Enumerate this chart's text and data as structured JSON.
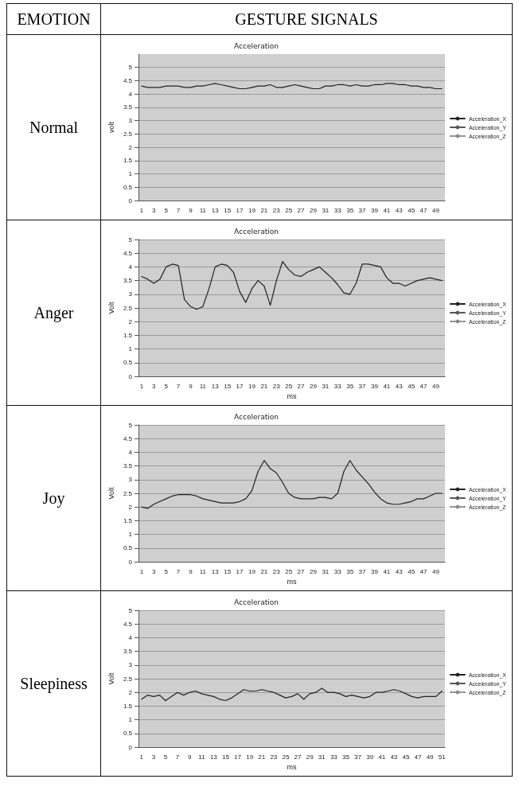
{
  "chart_data": [
    {
      "type": "line",
      "title": "Acceleration",
      "ylabel": "volt",
      "annotations": [
        "EMOTION",
        "GESTURE SIGNALS",
        "Normal"
      ],
      "x": [
        1,
        2,
        3,
        4,
        5,
        6,
        7,
        8,
        9,
        10,
        11,
        12,
        13,
        14,
        15,
        16,
        17,
        18,
        19,
        20,
        21,
        22,
        23,
        24,
        25,
        26,
        27,
        28,
        29,
        30,
        31,
        32,
        33,
        34,
        35,
        36,
        37,
        38,
        39,
        40,
        41,
        42,
        43,
        44,
        45,
        46,
        47,
        48,
        49,
        50
      ],
      "xlim": [
        0.5,
        50.5
      ],
      "xticks": [
        1,
        3,
        5,
        7,
        9,
        11,
        13,
        15,
        17,
        19,
        21,
        23,
        25,
        27,
        29,
        31,
        33,
        35,
        37,
        39,
        41,
        43,
        45,
        47,
        49
      ],
      "ylim": [
        0,
        5.5
      ],
      "yticks": [
        0,
        0.5,
        1,
        1.5,
        2,
        2.5,
        3,
        3.5,
        4,
        4.5,
        5
      ],
      "grid": "y",
      "legend": "right",
      "marker": "none",
      "series": [
        {
          "name": "Acceleration_X",
          "color": "#222222",
          "line_style": "solid",
          "values": [
            4.3,
            4.25,
            4.25,
            4.25,
            4.3,
            4.3,
            4.3,
            4.25,
            4.25,
            4.3,
            4.3,
            4.35,
            4.4,
            4.35,
            4.3,
            4.25,
            4.2,
            4.2,
            4.25,
            4.3,
            4.3,
            4.35,
            4.25,
            4.25,
            4.3,
            4.35,
            4.3,
            4.25,
            4.2,
            4.2,
            4.3,
            4.3,
            4.35,
            4.35,
            4.3,
            4.35,
            4.3,
            4.3,
            4.35,
            4.35,
            4.4,
            4.4,
            4.35,
            4.35,
            4.3,
            4.3,
            4.25,
            4.25,
            4.2,
            4.2
          ]
        },
        {
          "name": "Acceleration_Y",
          "color": "#555555",
          "line_style": "dashed",
          "values": [
            null,
            null,
            null,
            null,
            null,
            null,
            null,
            null,
            null,
            null,
            null,
            null,
            null,
            null,
            null,
            null,
            null,
            null,
            null,
            null,
            null,
            null,
            null,
            null,
            null,
            null,
            null,
            null,
            null,
            null,
            null,
            null,
            null,
            null,
            null,
            null,
            null,
            null,
            null,
            null,
            null,
            null,
            null,
            null,
            null,
            null,
            null,
            null,
            null,
            null
          ]
        },
        {
          "name": "Acceleration_Z",
          "color": "#888888",
          "line_style": "dotted",
          "values": [
            null,
            null,
            null,
            null,
            null,
            null,
            null,
            null,
            null,
            null,
            null,
            null,
            null,
            null,
            null,
            null,
            null,
            null,
            null,
            null,
            null,
            null,
            null,
            null,
            null,
            null,
            null,
            null,
            null,
            null,
            null,
            null,
            null,
            null,
            null,
            null,
            null,
            null,
            null,
            null,
            null,
            null,
            null,
            null,
            null,
            null,
            null,
            null,
            null,
            null
          ]
        }
      ]
    },
    {
      "type": "line",
      "title": "Acceleration",
      "xlabel": "ms",
      "ylabel": "Volt",
      "annotations": [
        "Anger"
      ],
      "x": [
        1,
        2,
        3,
        4,
        5,
        6,
        7,
        8,
        9,
        10,
        11,
        12,
        13,
        14,
        15,
        16,
        17,
        18,
        19,
        20,
        21,
        22,
        23,
        24,
        25,
        26,
        27,
        28,
        29,
        30,
        31,
        32,
        33,
        34,
        35,
        36,
        37,
        38,
        39,
        40,
        41,
        42,
        43,
        44,
        45,
        46,
        47,
        48,
        49,
        50
      ],
      "xlim": [
        0.5,
        50.5
      ],
      "xticks": [
        1,
        3,
        5,
        7,
        9,
        11,
        13,
        15,
        17,
        19,
        21,
        23,
        25,
        27,
        29,
        31,
        33,
        35,
        37,
        39,
        41,
        43,
        45,
        47,
        49
      ],
      "ylim": [
        0,
        5
      ],
      "yticks": [
        0,
        0.5,
        1,
        1.5,
        2,
        2.5,
        3,
        3.5,
        4,
        4.5,
        5
      ],
      "grid": "y",
      "legend": "right",
      "marker": "none",
      "series": [
        {
          "name": "Acceleration_X",
          "color": "#222222",
          "line_style": "solid",
          "values": [
            3.65,
            3.55,
            3.4,
            3.55,
            4.0,
            4.1,
            4.05,
            2.8,
            2.55,
            2.45,
            2.55,
            3.2,
            4.0,
            4.1,
            4.05,
            3.8,
            3.1,
            2.7,
            3.2,
            3.5,
            3.3,
            2.6,
            3.5,
            4.2,
            3.9,
            3.7,
            3.65,
            3.8,
            3.9,
            4.0,
            3.8,
            3.6,
            3.35,
            3.05,
            3.0,
            3.4,
            4.1,
            4.1,
            4.05,
            4.0,
            3.6,
            3.4,
            3.4,
            3.3,
            3.4,
            3.5,
            3.55,
            3.6,
            3.55,
            3.5
          ]
        },
        {
          "name": "Acceleration_Y",
          "color": "#555555",
          "line_style": "dashed",
          "values": [
            null,
            null,
            null,
            null,
            null,
            null,
            null,
            null,
            null,
            null,
            null,
            null,
            null,
            null,
            null,
            null,
            null,
            null,
            null,
            null,
            null,
            null,
            null,
            null,
            null,
            null,
            null,
            null,
            null,
            null,
            null,
            null,
            null,
            null,
            null,
            null,
            null,
            null,
            null,
            null,
            null,
            null,
            null,
            null,
            null,
            null,
            null,
            null,
            null,
            null
          ]
        },
        {
          "name": "Acceleration_Z",
          "color": "#888888",
          "line_style": "dotted",
          "values": [
            null,
            null,
            null,
            null,
            null,
            null,
            null,
            null,
            null,
            null,
            null,
            null,
            null,
            null,
            null,
            null,
            null,
            null,
            null,
            null,
            null,
            null,
            null,
            null,
            null,
            null,
            null,
            null,
            null,
            null,
            null,
            null,
            null,
            null,
            null,
            null,
            null,
            null,
            null,
            null,
            null,
            null,
            null,
            null,
            null,
            null,
            null,
            null,
            null,
            null
          ]
        }
      ]
    },
    {
      "type": "line",
      "title": "Acceleration",
      "xlabel": "ms",
      "ylabel": "Volt",
      "annotations": [
        "Joy"
      ],
      "x": [
        1,
        2,
        3,
        4,
        5,
        6,
        7,
        8,
        9,
        10,
        11,
        12,
        13,
        14,
        15,
        16,
        17,
        18,
        19,
        20,
        21,
        22,
        23,
        24,
        25,
        26,
        27,
        28,
        29,
        30,
        31,
        32,
        33,
        34,
        35,
        36,
        37,
        38,
        39,
        40,
        41,
        42,
        43,
        44,
        45,
        46,
        47,
        48,
        49,
        50
      ],
      "xlim": [
        0.5,
        50.5
      ],
      "xticks": [
        1,
        3,
        5,
        7,
        9,
        11,
        13,
        15,
        17,
        19,
        21,
        23,
        25,
        27,
        29,
        31,
        33,
        35,
        37,
        39,
        41,
        43,
        45,
        47,
        49
      ],
      "ylim": [
        0,
        5
      ],
      "yticks": [
        0,
        0.5,
        1,
        1.5,
        2,
        2.5,
        3,
        3.5,
        4,
        4.5,
        5
      ],
      "grid": "y",
      "legend": "right",
      "marker": "none",
      "series": [
        {
          "name": "Acceleration_X",
          "color": "#222222",
          "line_style": "solid",
          "values": [
            2.0,
            1.95,
            2.1,
            2.2,
            2.3,
            2.4,
            2.45,
            2.45,
            2.45,
            2.4,
            2.3,
            2.25,
            2.2,
            2.15,
            2.15,
            2.15,
            2.2,
            2.3,
            2.6,
            3.3,
            3.7,
            3.4,
            3.25,
            2.9,
            2.5,
            2.35,
            2.3,
            2.3,
            2.3,
            2.35,
            2.35,
            2.3,
            2.5,
            3.3,
            3.7,
            3.35,
            3.1,
            2.85,
            2.55,
            2.3,
            2.15,
            2.1,
            2.1,
            2.15,
            2.2,
            2.3,
            2.3,
            2.4,
            2.5,
            2.5
          ]
        },
        {
          "name": "Acceleration_Y",
          "color": "#555555",
          "line_style": "dashed",
          "values": [
            null,
            null,
            null,
            null,
            null,
            null,
            null,
            null,
            null,
            null,
            null,
            null,
            null,
            null,
            null,
            null,
            null,
            null,
            null,
            null,
            null,
            null,
            null,
            null,
            null,
            null,
            null,
            null,
            null,
            null,
            null,
            null,
            null,
            null,
            null,
            null,
            null,
            null,
            null,
            null,
            null,
            null,
            null,
            null,
            null,
            null,
            null,
            null,
            null,
            null
          ]
        },
        {
          "name": "Acceleration_Z",
          "color": "#888888",
          "line_style": "dotted",
          "values": [
            null,
            null,
            null,
            null,
            null,
            null,
            null,
            null,
            null,
            null,
            null,
            null,
            null,
            null,
            null,
            null,
            null,
            null,
            null,
            null,
            null,
            null,
            null,
            null,
            null,
            null,
            null,
            null,
            null,
            null,
            null,
            null,
            null,
            null,
            null,
            null,
            null,
            null,
            null,
            null,
            null,
            null,
            null,
            null,
            null,
            null,
            null,
            null,
            null,
            null
          ]
        }
      ]
    },
    {
      "type": "line",
      "title": "Acceleration",
      "xlabel": "ms",
      "ylabel": "Volt",
      "annotations": [
        "Sleepiness"
      ],
      "x": [
        1,
        2,
        3,
        4,
        5,
        6,
        7,
        8,
        9,
        10,
        11,
        12,
        13,
        14,
        15,
        16,
        17,
        18,
        19,
        20,
        21,
        22,
        23,
        24,
        25,
        26,
        27,
        28,
        29,
        30,
        31,
        32,
        33,
        34,
        35,
        36,
        37,
        38,
        39,
        40,
        41,
        42,
        43,
        44,
        45,
        46,
        47,
        48,
        49,
        50,
        51
      ],
      "xlim": [
        0.5,
        51.5
      ],
      "xticks": [
        1,
        3,
        5,
        7,
        9,
        11,
        13,
        15,
        17,
        19,
        21,
        23,
        25,
        27,
        29,
        31,
        33,
        35,
        37,
        39,
        41,
        43,
        45,
        47,
        49,
        51
      ],
      "ylim": [
        0,
        5
      ],
      "yticks": [
        0,
        0.5,
        1,
        1.5,
        2,
        2.5,
        3,
        3.5,
        4,
        4.5,
        5
      ],
      "grid": "y",
      "legend": "right",
      "marker": "none",
      "series": [
        {
          "name": "Acceleration_X",
          "color": "#222222",
          "line_style": "solid",
          "values": [
            1.75,
            1.9,
            1.85,
            1.9,
            1.7,
            1.85,
            2.0,
            1.9,
            2.0,
            2.05,
            1.95,
            1.9,
            1.85,
            1.75,
            1.7,
            1.8,
            1.95,
            2.1,
            2.05,
            2.05,
            2.1,
            2.05,
            2.0,
            1.9,
            1.8,
            1.85,
            1.95,
            1.75,
            1.95,
            2.0,
            2.15,
            2.0,
            2.0,
            1.95,
            1.85,
            1.9,
            1.85,
            1.8,
            1.85,
            2.0,
            2.0,
            2.05,
            2.1,
            2.05,
            1.95,
            1.85,
            1.8,
            1.85,
            1.85,
            1.85,
            2.05
          ]
        },
        {
          "name": "Acceleration_Y",
          "color": "#555555",
          "line_style": "dashed",
          "values": [
            null,
            null,
            null,
            null,
            null,
            null,
            null,
            null,
            null,
            null,
            null,
            null,
            null,
            null,
            null,
            null,
            null,
            null,
            null,
            null,
            null,
            null,
            null,
            null,
            null,
            null,
            null,
            null,
            null,
            null,
            null,
            null,
            null,
            null,
            null,
            null,
            null,
            null,
            null,
            null,
            null,
            null,
            null,
            null,
            null,
            null,
            null,
            null,
            null,
            null,
            null
          ]
        },
        {
          "name": "Acceleration_Z",
          "color": "#888888",
          "line_style": "dotted",
          "values": [
            null,
            null,
            null,
            null,
            null,
            null,
            null,
            null,
            null,
            null,
            null,
            null,
            null,
            null,
            null,
            null,
            null,
            null,
            null,
            null,
            null,
            null,
            null,
            null,
            null,
            null,
            null,
            null,
            null,
            null,
            null,
            null,
            null,
            null,
            null,
            null,
            null,
            null,
            null,
            null,
            null,
            null,
            null,
            null,
            null,
            null,
            null,
            null,
            null,
            null,
            null
          ]
        }
      ]
    }
  ]
}
